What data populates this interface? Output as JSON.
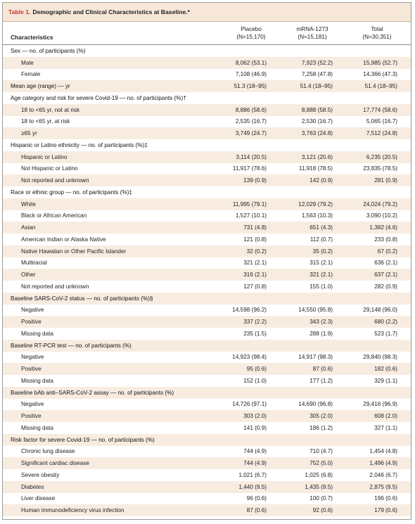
{
  "title": {
    "table_number": "Table 1.",
    "text": "Demographic and Clinical Characteristics at Baseline.*"
  },
  "header": {
    "characteristics": "Characteristics",
    "placebo": "Placebo",
    "placebo_n": "(N=15,170)",
    "mrna": "mRNA-1273",
    "mrna_n": "(N=15,181)",
    "total": "Total",
    "total_n": "(N=30,351)"
  },
  "rows": [
    {
      "label": "Sex — no. of participants (%)",
      "type": "cat",
      "placebo": "",
      "mrna": "",
      "total": ""
    },
    {
      "label": "Male",
      "type": "sub",
      "placebo": "8,062 (53.1)",
      "mrna": "7,923 (52.2)",
      "total": "15,985 (52.7)"
    },
    {
      "label": "Female",
      "type": "sub",
      "placebo": "7,108 (46.9)",
      "mrna": "7,258 (47.8)",
      "total": "14,366 (47.3)"
    },
    {
      "label": "Mean age (range) — yr",
      "type": "cat",
      "placebo": "51.3 (18–95)",
      "mrna": "51.4 (18–95)",
      "total": "51.4 (18–95)"
    },
    {
      "label": "Age category and risk for severe Covid-19 — no. of participants (%)†",
      "type": "cat",
      "placebo": "",
      "mrna": "",
      "total": ""
    },
    {
      "label": "18 to <65 yr, not at risk",
      "type": "sub",
      "placebo": "8,886 (58.6)",
      "mrna": "8,888 (58.5)",
      "total": "17,774 (58.6)"
    },
    {
      "label": "18 to <65 yr, at risk",
      "type": "sub",
      "placebo": "2,535 (16.7)",
      "mrna": "2,530 (16.7)",
      "total": "5,065 (16.7)"
    },
    {
      "label": "≥65 yr",
      "type": "sub",
      "placebo": "3,749 (24.7)",
      "mrna": "3,763 (24.8)",
      "total": "7,512 (24.8)"
    },
    {
      "label": "Hispanic or Latino ethnicity — no. of participants (%)‡",
      "type": "cat",
      "placebo": "",
      "mrna": "",
      "total": ""
    },
    {
      "label": "Hispanic or Latino",
      "type": "sub",
      "placebo": "3,114 (20.5)",
      "mrna": "3,121 (20.6)",
      "total": "6,235 (20.5)"
    },
    {
      "label": "Not Hispanic or Latino",
      "type": "sub",
      "placebo": "11,917 (78.6)",
      "mrna": "11,918 (78.5)",
      "total": "23,835 (78.5)"
    },
    {
      "label": "Not reported and unknown",
      "type": "sub",
      "placebo": "139 (0.9)",
      "mrna": "142 (0.9)",
      "total": "281 (0.9)"
    },
    {
      "label": "Race or ethnic group — no. of participants (%)‡",
      "type": "cat",
      "placebo": "",
      "mrna": "",
      "total": ""
    },
    {
      "label": "White",
      "type": "sub",
      "placebo": "11,995 (79.1)",
      "mrna": "12,029 (79.2)",
      "total": "24,024 (79.2)"
    },
    {
      "label": "Black or African American",
      "type": "sub",
      "placebo": "1,527 (10.1)",
      "mrna": "1,563 (10.3)",
      "total": "3,090 (10.2)"
    },
    {
      "label": "Asian",
      "type": "sub",
      "placebo": "731 (4.8)",
      "mrna": "651 (4.3)",
      "total": "1,382 (4.6)"
    },
    {
      "label": "American Indian or Alaska Native",
      "type": "sub",
      "placebo": "121 (0.8)",
      "mrna": "112 (0.7)",
      "total": "233 (0.8)"
    },
    {
      "label": "Native Hawaiian or Other Pacific Islander",
      "type": "sub",
      "placebo": "32 (0.2)",
      "mrna": "35 (0.2)",
      "total": "67 (0.2)"
    },
    {
      "label": "Multiracial",
      "type": "sub",
      "placebo": "321 (2.1)",
      "mrna": "315 (2.1)",
      "total": "636 (2.1)"
    },
    {
      "label": "Other",
      "type": "sub",
      "placebo": "316 (2.1)",
      "mrna": "321 (2.1)",
      "total": "637 (2.1)"
    },
    {
      "label": "Not reported and unknown",
      "type": "sub",
      "placebo": "127 (0.8)",
      "mrna": "155 (1.0)",
      "total": "282 (0.9)"
    },
    {
      "label": "Baseline SARS-CoV-2 status — no. of participants (%)§",
      "type": "cat",
      "placebo": "",
      "mrna": "",
      "total": ""
    },
    {
      "label": "Negative",
      "type": "sub",
      "placebo": "14,598 (96.2)",
      "mrna": "14,550 (95.8)",
      "total": "29,148 (96.0)"
    },
    {
      "label": "Positive",
      "type": "sub",
      "placebo": "337 (2.2)",
      "mrna": "343 (2.3)",
      "total": "680 (2.2)"
    },
    {
      "label": "Missing data",
      "type": "sub",
      "placebo": "235 (1.5)",
      "mrna": "288 (1.9)",
      "total": "523 (1.7)"
    },
    {
      "label": "Baseline RT-PCR test — no. of participants (%)",
      "type": "cat",
      "placebo": "",
      "mrna": "",
      "total": ""
    },
    {
      "label": "Negative",
      "type": "sub",
      "placebo": "14,923 (98.4)",
      "mrna": "14,917 (98.3)",
      "total": "29,840 (98.3)"
    },
    {
      "label": "Positive",
      "type": "sub",
      "placebo": "95 (0.6)",
      "mrna": "87 (0.6)",
      "total": "182 (0.6)"
    },
    {
      "label": "Missing data",
      "type": "sub",
      "placebo": "152 (1.0)",
      "mrna": "177 (1.2)",
      "total": "329 (1.1)"
    },
    {
      "label": "Baseline bAb anti–SARS-CoV-2 assay — no. of participants (%)",
      "type": "cat",
      "placebo": "",
      "mrna": "",
      "total": ""
    },
    {
      "label": "Negative",
      "type": "sub",
      "placebo": "14,726 (97.1)",
      "mrna": "14,690 (96.8)",
      "total": "29,416 (96.9)"
    },
    {
      "label": "Positive",
      "type": "sub",
      "placebo": "303 (2.0)",
      "mrna": "305 (2.0)",
      "total": "608 (2.0)"
    },
    {
      "label": "Missing data",
      "type": "sub",
      "placebo": "141 (0.9)",
      "mrna": "186 (1.2)",
      "total": "327 (1.1)"
    },
    {
      "label": "Risk factor for severe Covid-19 — no. of participants (%)",
      "type": "cat",
      "placebo": "",
      "mrna": "",
      "total": ""
    },
    {
      "label": "Chronic lung disease",
      "type": "sub",
      "placebo": "744 (4.9)",
      "mrna": "710 (4.7)",
      "total": "1,454 (4.8)"
    },
    {
      "label": "Significant cardiac disease",
      "type": "sub",
      "placebo": "744 (4.9)",
      "mrna": "752 (5.0)",
      "total": "1,496 (4.9)"
    },
    {
      "label": "Severe obesity",
      "type": "sub",
      "placebo": "1,021 (6.7)",
      "mrna": "1,025 (6.8)",
      "total": "2,046 (6.7)"
    },
    {
      "label": "Diabetes",
      "type": "sub",
      "placebo": "1,440 (9.5)",
      "mrna": "1,435 (9.5)",
      "total": "2,875 (9.5)"
    },
    {
      "label": "Liver disease",
      "type": "sub",
      "placebo": "96 (0.6)",
      "mrna": "100 (0.7)",
      "total": "196 (0.6)"
    },
    {
      "label": "Human immunodeficiency virus infection",
      "type": "sub",
      "placebo": "87 (0.6)",
      "mrna": "92 (0.6)",
      "total": "179 (0.6)"
    }
  ],
  "colors": {
    "title_bg": "#f6e7d8",
    "row_shade": "#f8ece1",
    "table_number": "#c0392b",
    "border": "#9a9a9a"
  }
}
